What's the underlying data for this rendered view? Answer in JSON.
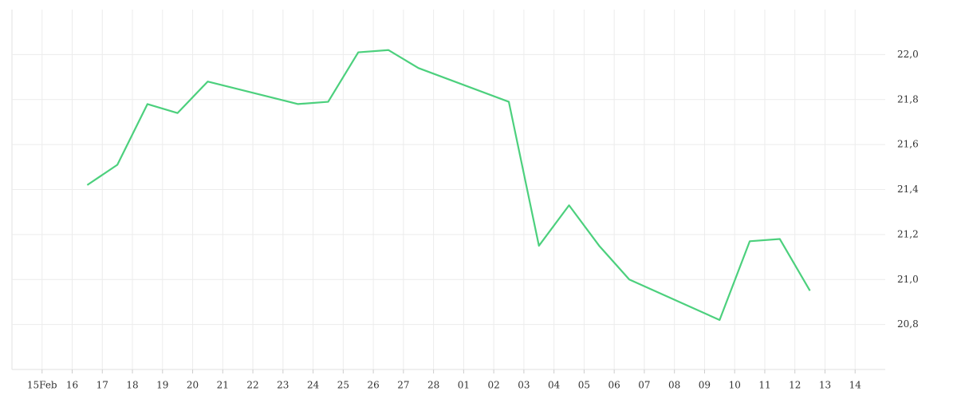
{
  "chart_data": {
    "type": "line",
    "x": [
      1.5,
      2.5,
      3.5,
      4.5,
      5.5,
      8.5,
      9.5,
      10.5,
      11.5,
      12.5,
      15.5,
      16.5,
      17.5,
      18.5,
      19.5,
      22.5,
      23.5,
      24.5,
      25.5
    ],
    "series": [
      {
        "color": "#4cd07d",
        "values": [
          21.42,
          21.51,
          21.78,
          21.74,
          21.88,
          21.78,
          21.79,
          22.01,
          22.02,
          21.94,
          21.79,
          21.15,
          21.33,
          21.15,
          21.0,
          20.82,
          21.17,
          21.18,
          20.95
        ]
      }
    ],
    "xlim": [
      -1,
      28
    ],
    "xticks": [
      {
        "value": 0,
        "label": "15Feb"
      },
      {
        "value": 1,
        "label": "16"
      },
      {
        "value": 2,
        "label": "17"
      },
      {
        "value": 3,
        "label": "18"
      },
      {
        "value": 4,
        "label": "19"
      },
      {
        "value": 5,
        "label": "20"
      },
      {
        "value": 6,
        "label": "21"
      },
      {
        "value": 7,
        "label": "22"
      },
      {
        "value": 8,
        "label": "23"
      },
      {
        "value": 9,
        "label": "24"
      },
      {
        "value": 10,
        "label": "25"
      },
      {
        "value": 11,
        "label": "26"
      },
      {
        "value": 12,
        "label": "27"
      },
      {
        "value": 13,
        "label": "28"
      },
      {
        "value": 14,
        "label": "01"
      },
      {
        "value": 15,
        "label": "02"
      },
      {
        "value": 16,
        "label": "03"
      },
      {
        "value": 17,
        "label": "04"
      },
      {
        "value": 18,
        "label": "05"
      },
      {
        "value": 19,
        "label": "06"
      },
      {
        "value": 20,
        "label": "07"
      },
      {
        "value": 21,
        "label": "08"
      },
      {
        "value": 22,
        "label": "09"
      },
      {
        "value": 23,
        "label": "10"
      },
      {
        "value": 24,
        "label": "11"
      },
      {
        "value": 25,
        "label": "12"
      },
      {
        "value": 26,
        "label": "13"
      },
      {
        "value": 27,
        "label": "14"
      }
    ],
    "ylim": [
      20.6,
      22.2
    ],
    "yticks": [
      {
        "value": 20.8,
        "label": "20,8"
      },
      {
        "value": 21.0,
        "label": "21,0"
      },
      {
        "value": 21.2,
        "label": "21,2"
      },
      {
        "value": 21.4,
        "label": "21,4"
      },
      {
        "value": 21.6,
        "label": "21,6"
      },
      {
        "value": 21.8,
        "label": "21,8"
      },
      {
        "value": 22.0,
        "label": "22,0"
      }
    ],
    "grid": true
  }
}
